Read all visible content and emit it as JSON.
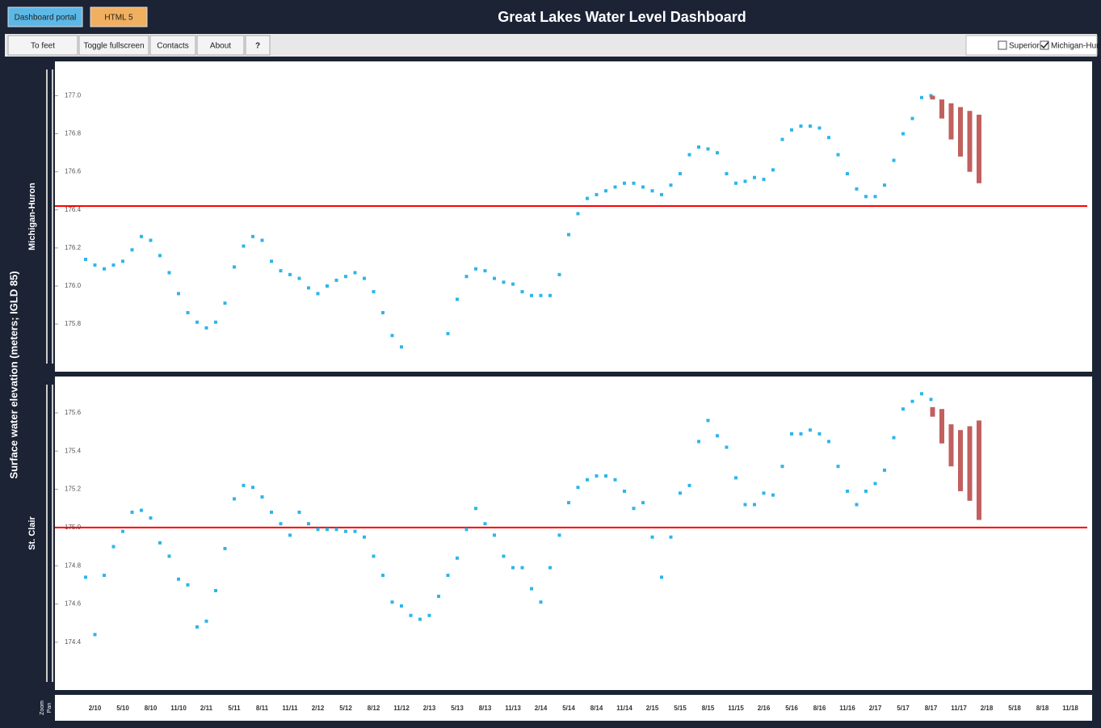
{
  "header": {
    "title": "Great Lakes Water Level Dashboard",
    "tabs": [
      "Dashboard portal",
      "HTML 5"
    ],
    "buttons": [
      "To feet",
      "Toggle fullscreen",
      "Contacts",
      "About",
      "?"
    ],
    "lakes": [
      {
        "label": "Superior",
        "checked": false
      },
      {
        "label": "Michigan-Huro",
        "checked": true
      }
    ]
  },
  "y_axis_label": "Surface water elevation (meters; IGLD 85)",
  "navigator": {
    "zoom": "Zoom",
    "pan": "Pan"
  },
  "time_axis": {
    "labels": [
      "2/10",
      "5/10",
      "8/10",
      "11/10",
      "2/11",
      "5/11",
      "8/11",
      "11/11",
      "2/12",
      "5/12",
      "8/12",
      "11/12",
      "2/13",
      "5/13",
      "8/13",
      "11/13",
      "2/14",
      "5/14",
      "8/14",
      "11/14",
      "2/15",
      "5/15",
      "8/15",
      "11/15",
      "2/16",
      "5/16",
      "8/16",
      "11/16",
      "2/17",
      "5/17",
      "8/17",
      "11/17",
      "2/18",
      "5/18",
      "8/18",
      "11/18"
    ]
  },
  "chart_data": [
    {
      "type": "scatter",
      "title": "Michigan-Huron",
      "ylim": [
        175.55,
        177.18
      ],
      "yticks": [
        {
          "value": 177,
          "label": "177.0"
        },
        {
          "value": 176.8,
          "label": "176.8"
        },
        {
          "value": 176.6,
          "label": "176.6"
        },
        {
          "value": 176.4,
          "label": "176.4"
        },
        {
          "value": 176.2,
          "label": "176.2"
        },
        {
          "value": 176,
          "label": "176.0"
        },
        {
          "value": 175.8,
          "label": "175.8"
        }
      ],
      "color": "#2cb6ea",
      "forecast_color": "#c0605f",
      "average_color": "#ff0000",
      "average": 176.42,
      "values": [
        176.14,
        176.11,
        176.09,
        176.11,
        176.13,
        176.19,
        176.26,
        176.24,
        176.16,
        176.07,
        175.96,
        175.86,
        175.81,
        175.78,
        175.81,
        175.91,
        176.1,
        176.21,
        176.26,
        176.24,
        176.13,
        176.08,
        176.06,
        176.04,
        175.99,
        175.96,
        176.0,
        176.03,
        176.05,
        176.07,
        176.04,
        175.97,
        175.86,
        175.74,
        175.68,
        null,
        null,
        null,
        null,
        175.75,
        175.93,
        176.05,
        176.09,
        176.08,
        176.04,
        176.02,
        176.01,
        175.97,
        175.95,
        175.95,
        175.95,
        176.06,
        176.27,
        176.38,
        176.46,
        176.48,
        176.5,
        176.52,
        176.54,
        176.54,
        176.52,
        176.5,
        176.48,
        176.53,
        176.59,
        176.69,
        176.73,
        176.72,
        176.7,
        176.59,
        176.54,
        176.55,
        176.57,
        176.56,
        176.61,
        176.77,
        176.82,
        176.84,
        176.84,
        176.83,
        176.78,
        176.69,
        176.59,
        176.51,
        176.47,
        176.47,
        176.53,
        176.66,
        176.8,
        176.88,
        176.99,
        177.0,
        null,
        null,
        null,
        null,
        null
      ],
      "forecast_high": [
        null,
        null,
        null,
        null,
        null,
        null,
        null,
        null,
        null,
        null,
        null,
        null,
        null,
        null,
        null,
        null,
        null,
        null,
        null,
        null,
        null,
        null,
        null,
        null,
        null,
        null,
        null,
        null,
        null,
        null,
        null,
        null,
        null,
        null,
        null,
        null,
        null,
        null,
        null,
        null,
        null,
        null,
        null,
        null,
        null,
        null,
        null,
        null,
        null,
        null,
        null,
        null,
        null,
        null,
        null,
        null,
        null,
        null,
        null,
        null,
        null,
        null,
        null,
        null,
        null,
        null,
        null,
        null,
        null,
        null,
        null,
        null,
        null,
        null,
        null,
        null,
        null,
        null,
        null,
        null,
        null,
        null,
        null,
        null,
        null,
        null,
        null,
        null,
        null,
        null,
        null,
        177.0,
        176.98,
        176.96,
        176.94,
        176.92,
        176.9
      ],
      "forecast_low": [
        null,
        null,
        null,
        null,
        null,
        null,
        null,
        null,
        null,
        null,
        null,
        null,
        null,
        null,
        null,
        null,
        null,
        null,
        null,
        null,
        null,
        null,
        null,
        null,
        null,
        null,
        null,
        null,
        null,
        null,
        null,
        null,
        null,
        null,
        null,
        null,
        null,
        null,
        null,
        null,
        null,
        null,
        null,
        null,
        null,
        null,
        null,
        null,
        null,
        null,
        null,
        null,
        null,
        null,
        null,
        null,
        null,
        null,
        null,
        null,
        null,
        null,
        null,
        null,
        null,
        null,
        null,
        null,
        null,
        null,
        null,
        null,
        null,
        null,
        null,
        null,
        null,
        null,
        null,
        null,
        null,
        null,
        null,
        null,
        null,
        null,
        null,
        null,
        null,
        null,
        null,
        176.98,
        176.88,
        176.77,
        176.68,
        176.6,
        176.54
      ]
    },
    {
      "type": "scatter",
      "title": "St. Clair",
      "ylim": [
        174.15,
        175.79
      ],
      "yticks": [
        {
          "value": 175.6,
          "label": "175.6"
        },
        {
          "value": 175.4,
          "label": "175.4"
        },
        {
          "value": 175.2,
          "label": "175.2"
        },
        {
          "value": 175,
          "label": "175.0"
        },
        {
          "value": 174.8,
          "label": "174.8"
        },
        {
          "value": 174.6,
          "label": "174.6"
        },
        {
          "value": 174.4,
          "label": "174.4"
        }
      ],
      "color": "#2cb6ea",
      "forecast_color": "#c0605f",
      "average_color": "#ff0000",
      "average": 175.0,
      "values": [
        174.74,
        174.44,
        174.75,
        174.9,
        174.98,
        175.08,
        175.09,
        175.05,
        174.92,
        174.85,
        174.73,
        174.7,
        174.48,
        174.51,
        174.67,
        174.89,
        175.15,
        175.22,
        175.21,
        175.16,
        175.08,
        175.02,
        174.96,
        175.08,
        175.02,
        174.99,
        174.99,
        174.99,
        174.98,
        174.98,
        174.95,
        174.85,
        174.75,
        174.61,
        174.59,
        174.54,
        174.52,
        174.54,
        174.64,
        174.75,
        174.84,
        174.99,
        175.1,
        175.02,
        174.96,
        174.85,
        174.79,
        174.79,
        174.68,
        174.61,
        174.79,
        174.96,
        175.13,
        175.21,
        175.25,
        175.27,
        175.27,
        175.25,
        175.19,
        175.1,
        175.13,
        174.95,
        174.74,
        174.95,
        175.18,
        175.22,
        175.45,
        175.56,
        175.48,
        175.42,
        175.26,
        175.12,
        175.12,
        175.18,
        175.17,
        175.32,
        175.49,
        175.49,
        175.51,
        175.49,
        175.45,
        175.32,
        175.19,
        175.12,
        175.19,
        175.23,
        175.3,
        175.47,
        175.62,
        175.66,
        175.7,
        175.67,
        null,
        null,
        null,
        null,
        null
      ],
      "forecast_high": [
        null,
        null,
        null,
        null,
        null,
        null,
        null,
        null,
        null,
        null,
        null,
        null,
        null,
        null,
        null,
        null,
        null,
        null,
        null,
        null,
        null,
        null,
        null,
        null,
        null,
        null,
        null,
        null,
        null,
        null,
        null,
        null,
        null,
        null,
        null,
        null,
        null,
        null,
        null,
        null,
        null,
        null,
        null,
        null,
        null,
        null,
        null,
        null,
        null,
        null,
        null,
        null,
        null,
        null,
        null,
        null,
        null,
        null,
        null,
        null,
        null,
        null,
        null,
        null,
        null,
        null,
        null,
        null,
        null,
        null,
        null,
        null,
        null,
        null,
        null,
        null,
        null,
        null,
        null,
        null,
        null,
        null,
        null,
        null,
        null,
        null,
        null,
        null,
        null,
        null,
        null,
        175.63,
        175.62,
        175.54,
        175.51,
        175.53,
        175.56
      ],
      "forecast_low": [
        null,
        null,
        null,
        null,
        null,
        null,
        null,
        null,
        null,
        null,
        null,
        null,
        null,
        null,
        null,
        null,
        null,
        null,
        null,
        null,
        null,
        null,
        null,
        null,
        null,
        null,
        null,
        null,
        null,
        null,
        null,
        null,
        null,
        null,
        null,
        null,
        null,
        null,
        null,
        null,
        null,
        null,
        null,
        null,
        null,
        null,
        null,
        null,
        null,
        null,
        null,
        null,
        null,
        null,
        null,
        null,
        null,
        null,
        null,
        null,
        null,
        null,
        null,
        null,
        null,
        null,
        null,
        null,
        null,
        null,
        null,
        null,
        null,
        null,
        null,
        null,
        null,
        null,
        null,
        null,
        null,
        null,
        null,
        null,
        null,
        null,
        null,
        null,
        null,
        null,
        null,
        175.58,
        175.44,
        175.32,
        175.19,
        175.14,
        175.04
      ]
    }
  ]
}
